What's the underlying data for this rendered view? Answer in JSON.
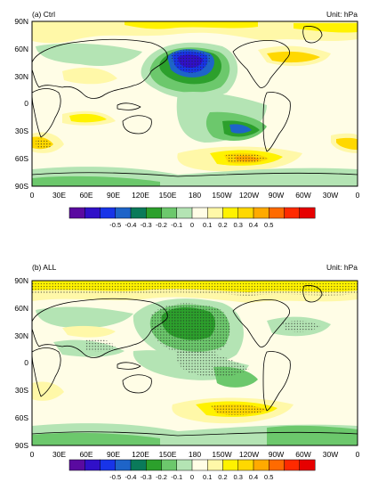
{
  "panels": [
    {
      "id": "ctrl",
      "title": "(a) Ctrl",
      "unit": "Unit: hPa",
      "lat_labels": [
        "90N",
        "60N",
        "30N",
        "0",
        "30S",
        "60S",
        "90S"
      ],
      "lon_labels": [
        "0",
        "30E",
        "60E",
        "90E",
        "120E",
        "150E",
        "180",
        "150W",
        "120W",
        "90W",
        "60W",
        "30W",
        "0"
      ]
    },
    {
      "id": "all",
      "title": "(b) ALL",
      "unit": "Unit: hPa",
      "lat_labels": [
        "90N",
        "60N",
        "30N",
        "0",
        "30S",
        "60S",
        "90S"
      ],
      "lon_labels": [
        "0",
        "30E",
        "60E",
        "90E",
        "120E",
        "150E",
        "180",
        "150W",
        "120W",
        "90W",
        "60W",
        "30W",
        "0"
      ]
    }
  ],
  "colorbar": {
    "labels": [
      "-0.5",
      "-0.4",
      "-0.3",
      "-0.2",
      "-0.1",
      "0",
      "0.1",
      "0.2",
      "0.3",
      "0.4",
      "0.5"
    ],
    "colors": [
      "#5a0aa0",
      "#3010c8",
      "#1834e8",
      "#1e64c8",
      "#0a7a5a",
      "#2ca02c",
      "#6cc86c",
      "#b4e4b4",
      "#fffde6",
      "#fff8a8",
      "#fff200",
      "#ffd800",
      "#ffaa00",
      "#ff6a00",
      "#ff2a00",
      "#e60000"
    ]
  }
}
